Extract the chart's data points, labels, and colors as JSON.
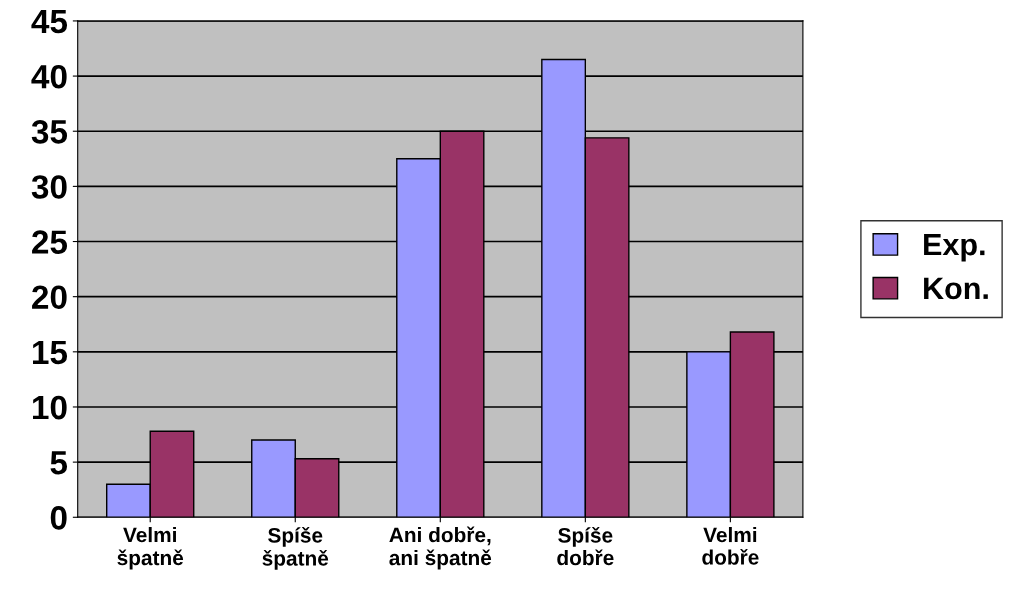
{
  "chart_data": {
    "type": "bar",
    "categories": [
      "Velmi\nšpatně",
      "Spíše\nšpatně",
      "Ani dobře,\nani špatně",
      "Spíše\ndobře",
      "Velmi\ndobře"
    ],
    "series": [
      {
        "name": "Exp.",
        "color": "#9999ff",
        "values": [
          3,
          7,
          32.5,
          41.5,
          15
        ]
      },
      {
        "name": "Kon.",
        "color": "#993366",
        "values": [
          7.8,
          5.3,
          35,
          34.4,
          16.8
        ]
      }
    ],
    "ylim": [
      0,
      45
    ],
    "yticks": [
      0,
      5,
      10,
      15,
      20,
      25,
      30,
      35,
      40,
      45
    ],
    "grid": "y",
    "legend": "right"
  }
}
